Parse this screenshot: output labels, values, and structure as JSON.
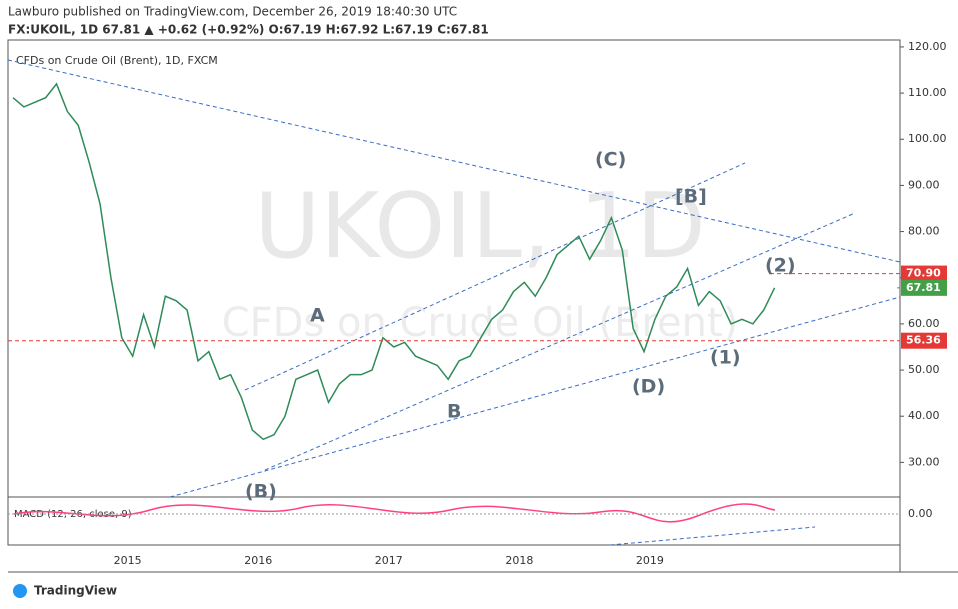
{
  "header": {
    "publisher": "Lawburo published on TradingView.com, December 26, 2019 18:40:30 UTC",
    "symbol_line": "FX:UKOIL, 1D 67.81 ▲ +0.62 (+0.92%) O:67.19 H:67.92 L:67.19 C:67.81"
  },
  "footer": {
    "brand": "TradingView"
  },
  "chart_data": {
    "type": "line",
    "legend_label": "CFDs on Crude Oil (Brent), 1D, FXCM",
    "watermark": "UKOIL, 1D",
    "watermark_sub": "CFDs on Crude Oil (Brent)",
    "categories": [
      null,
      null,
      null,
      null,
      null,
      null,
      null,
      null,
      null,
      null,
      null,
      "2015",
      null,
      null,
      null,
      null,
      null,
      null,
      null,
      null,
      null,
      null,
      null,
      "2016",
      null,
      null,
      null,
      null,
      null,
      null,
      null,
      null,
      null,
      null,
      null,
      "2017",
      null,
      null,
      null,
      null,
      null,
      null,
      null,
      null,
      null,
      null,
      null,
      "2018",
      null,
      null,
      null,
      null,
      null,
      null,
      null,
      null,
      null,
      null,
      null,
      "2019",
      null,
      null,
      null,
      null,
      null,
      null,
      null,
      null,
      null,
      null,
      null
    ],
    "series": [
      {
        "name": "UKOIL",
        "color": "#2e8b57",
        "values": [
          109,
          107,
          108,
          109,
          112,
          106,
          103,
          95,
          86,
          70,
          57,
          53,
          62,
          55,
          66,
          65,
          63,
          52,
          54,
          48,
          49,
          44,
          37,
          35,
          36,
          40,
          48,
          49,
          50,
          43,
          47,
          49,
          49,
          50,
          57,
          55,
          56,
          53,
          52,
          51,
          48,
          52,
          53,
          57,
          61,
          63,
          67,
          69,
          66,
          70,
          75,
          77,
          79,
          74,
          78,
          83,
          76,
          59,
          54,
          61,
          66,
          68,
          72,
          64,
          67,
          65,
          60,
          61,
          60,
          63,
          67.81
        ]
      }
    ],
    "ylim": [
      22.5,
      121.5
    ],
    "yticks": [
      {
        "value": 30,
        "label": "30.00"
      },
      {
        "value": 40,
        "label": "40.00"
      },
      {
        "value": 50,
        "label": "50.00"
      },
      {
        "value": 60,
        "label": "60.00"
      },
      {
        "value": 70,
        "label": "70.00"
      },
      {
        "value": 80,
        "label": "80.00"
      },
      {
        "value": 90,
        "label": "90.00"
      },
      {
        "value": 100,
        "label": "100.00"
      },
      {
        "value": 110,
        "label": "110.00"
      },
      {
        "value": 120,
        "label": "120.00"
      }
    ],
    "levels": [
      {
        "value": 70.9,
        "label": "70.90",
        "color": "#e53935",
        "dashed": true
      },
      {
        "value": 67.81,
        "label": "67.81",
        "color": "#43a047",
        "dashed": false
      },
      {
        "value": 56.36,
        "label": "56.36",
        "color": "#e53935",
        "dashed": true
      }
    ],
    "annotations": [
      "A",
      "B",
      "(B)",
      "(C)",
      "[B]",
      "(D)",
      "(1)",
      "(2)"
    ],
    "macd": {
      "label": "MACD (12, 26, close, 9)",
      "yticks": [
        {
          "value": 0,
          "label": "0.00"
        }
      ]
    }
  }
}
